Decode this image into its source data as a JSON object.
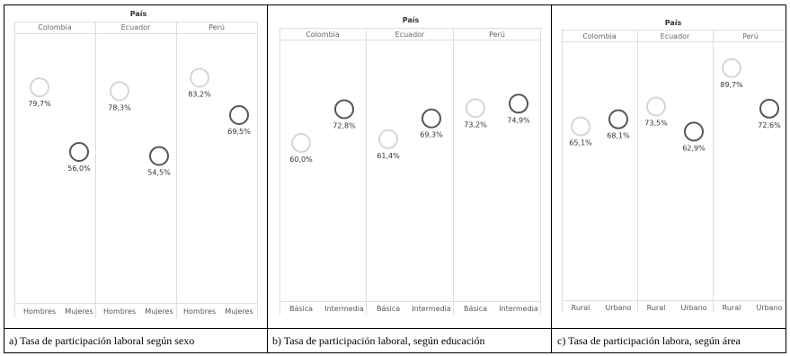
{
  "colors": {
    "first_category": "#d6d6d6",
    "second_category": "#555555"
  },
  "panels": [
    {
      "caption": "a) Tasa de participación laboral según sexo",
      "chart_data": {
        "type": "scatter",
        "facet_title": "País",
        "facets": [
          "Colombia",
          "Ecuador",
          "Perú"
        ],
        "categories": [
          "Hombres",
          "Mujeres"
        ],
        "values": [
          [
            79.7,
            56.0
          ],
          [
            78.3,
            54.5
          ],
          [
            83.2,
            69.5
          ]
        ],
        "labels": [
          [
            "79,7%",
            "56,0%"
          ],
          [
            "78,3%",
            "54,5%"
          ],
          [
            "83,2%",
            "69,5%"
          ]
        ]
      }
    },
    {
      "caption": "b) Tasa de participación laboral, según educación",
      "chart_data": {
        "type": "scatter",
        "facet_title": "País",
        "facets": [
          "Colombia",
          "Ecuador",
          "Perú"
        ],
        "categories": [
          "Básica",
          "Intermedia"
        ],
        "values": [
          [
            60.0,
            72.8
          ],
          [
            61.4,
            69.3
          ],
          [
            73.2,
            74.9
          ]
        ],
        "labels": [
          [
            "60,0%",
            "72,8%"
          ],
          [
            "61,4%",
            "69,3%"
          ],
          [
            "73,2%",
            "74,9%"
          ]
        ]
      }
    },
    {
      "caption": "c) Tasa de participación labora, según área",
      "chart_data": {
        "type": "scatter",
        "facet_title": "País",
        "facets": [
          "Colombia",
          "Ecuador",
          "Perú"
        ],
        "categories": [
          "Rural",
          "Urbano"
        ],
        "values": [
          [
            65.1,
            68.1
          ],
          [
            73.5,
            62.9
          ],
          [
            89.7,
            72.6
          ]
        ],
        "labels": [
          [
            "65,1%",
            "68,1%"
          ],
          [
            "73,5%",
            "62,9%"
          ],
          [
            "89,7%",
            "72,6%"
          ]
        ]
      }
    }
  ]
}
